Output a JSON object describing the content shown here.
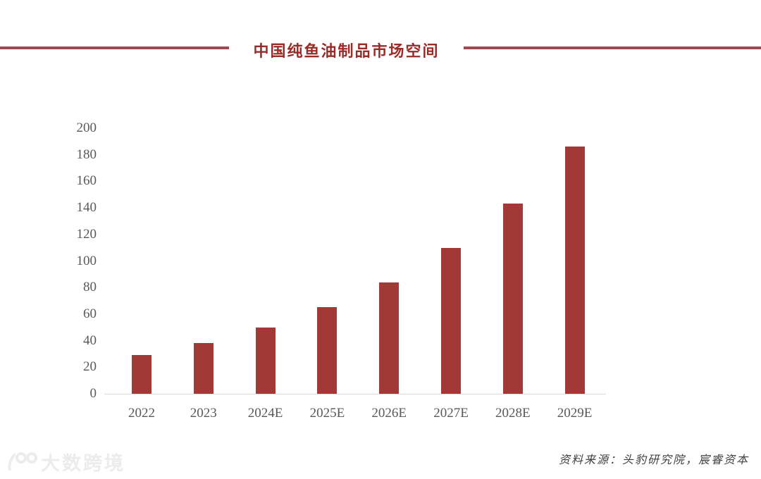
{
  "header": {
    "title": "中国纯鱼油制品市场空间"
  },
  "chart_data": {
    "type": "bar",
    "title": "中国纯鱼油制品市场空间",
    "categories": [
      "2022",
      "2023",
      "2024E",
      "2025E",
      "2026E",
      "2027E",
      "2028E",
      "2029E"
    ],
    "values": [
      29,
      38,
      50,
      65,
      84,
      110,
      143,
      186
    ],
    "xlabel": "",
    "ylabel": "",
    "ylim": [
      0,
      200
    ],
    "ytick_interval": 20,
    "grid": false,
    "legend": "none"
  },
  "footer": {
    "source": "资料来源：头豹研究院，宸睿资本",
    "watermark": "大数跨境"
  },
  "colors": {
    "bar": "#A13937",
    "title_red": "#9A2B27",
    "rule_red": "#9A4A50",
    "axis_line": "#D9D9D9",
    "tick_text": "#595959"
  }
}
